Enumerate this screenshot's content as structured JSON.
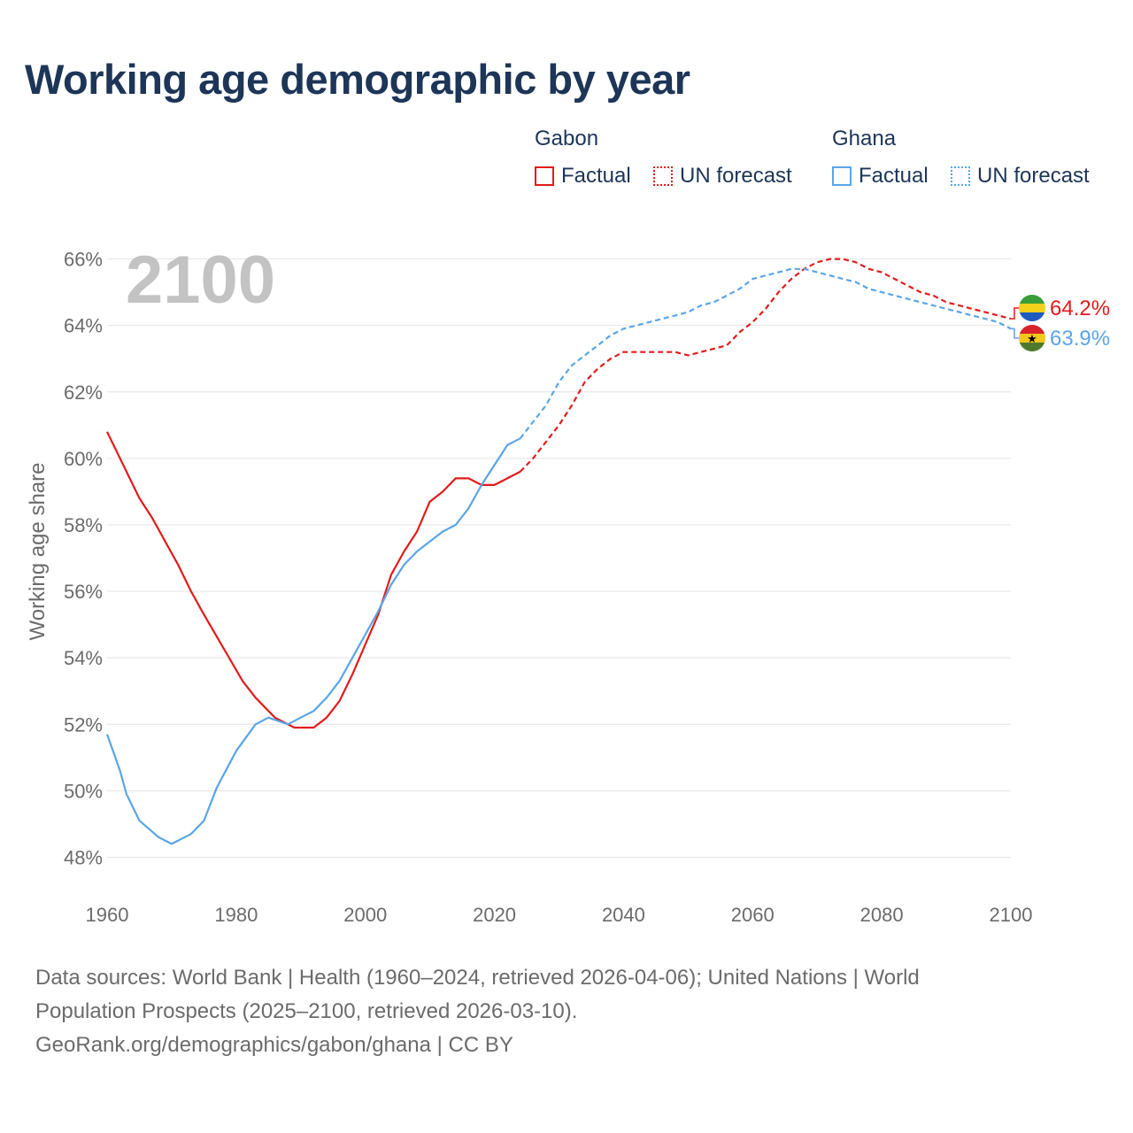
{
  "title": "Working age demographic by year",
  "legend": {
    "groups": [
      {
        "country": "Gabon",
        "factual": "Factual",
        "forecast": "UN forecast",
        "color": "#e31b1b"
      },
      {
        "country": "Ghana",
        "factual": "Factual",
        "forecast": "UN forecast",
        "color": "#5aa5e6"
      }
    ]
  },
  "sources": {
    "line1": "Data sources: World Bank | Health (1960–2024, retrieved 2026-04-06); United Nations | World",
    "line2": "Population Prospects (2025–2100, retrieved 2026-03-10).",
    "line3": "GeoRank.org/demographics/gabon/ghana | CC BY"
  },
  "chart_data": {
    "type": "line",
    "current_year_label": "2100",
    "ylabel": "Working age share",
    "xlim": [
      1960,
      2100
    ],
    "ylim": [
      47,
      67
    ],
    "xticks": [
      "1960",
      "1980",
      "2000",
      "2020",
      "2040",
      "2060",
      "2080",
      "2100"
    ],
    "yticks": [
      "48%",
      "50%",
      "52%",
      "54%",
      "56%",
      "58%",
      "60%",
      "62%",
      "64%",
      "66%"
    ],
    "ytick_values": [
      48,
      50,
      52,
      54,
      56,
      58,
      60,
      62,
      64,
      66
    ],
    "factual_end_year": 2024,
    "series": [
      {
        "name": "Gabon",
        "color": "#e31b1b",
        "end_label": "64.2%",
        "flag": "gabon-flag-icon",
        "x": [
          1960,
          1963,
          1965,
          1967,
          1969,
          1971,
          1973,
          1975,
          1978,
          1981,
          1983,
          1986,
          1989,
          1992,
          1994,
          1996,
          1998,
          2000,
          2002,
          2004,
          2006,
          2008,
          2010,
          2012,
          2014,
          2016,
          2018,
          2020,
          2022,
          2024,
          2026,
          2028,
          2030,
          2032,
          2034,
          2036,
          2038,
          2040,
          2042,
          2044,
          2046,
          2048,
          2050,
          2052,
          2054,
          2056,
          2058,
          2060,
          2062,
          2064,
          2066,
          2068,
          2070,
          2072,
          2074,
          2076,
          2078,
          2080,
          2082,
          2084,
          2086,
          2088,
          2090,
          2092,
          2094,
          2096,
          2098,
          2100
        ],
        "y": [
          60.8,
          59.6,
          58.8,
          58.2,
          57.5,
          56.8,
          56.0,
          55.3,
          54.3,
          53.3,
          52.8,
          52.2,
          51.9,
          51.9,
          52.2,
          52.7,
          53.5,
          54.4,
          55.3,
          56.5,
          57.2,
          57.8,
          58.7,
          59.0,
          59.4,
          59.4,
          59.2,
          59.2,
          59.4,
          59.6,
          60.0,
          60.5,
          61.0,
          61.6,
          62.3,
          62.7,
          63.0,
          63.2,
          63.2,
          63.2,
          63.2,
          63.2,
          63.1,
          63.2,
          63.3,
          63.4,
          63.8,
          64.1,
          64.5,
          65.0,
          65.4,
          65.7,
          65.9,
          66.0,
          66.0,
          65.9,
          65.7,
          65.6,
          65.4,
          65.2,
          65.0,
          64.9,
          64.7,
          64.6,
          64.5,
          64.4,
          64.3,
          64.2
        ]
      },
      {
        "name": "Ghana",
        "color": "#5aa5e6",
        "end_label": "63.9%",
        "flag": "ghana-flag-icon",
        "x": [
          1960,
          1962,
          1963,
          1965,
          1968,
          1970,
          1973,
          1975,
          1977,
          1980,
          1983,
          1985,
          1988,
          1990,
          1992,
          1994,
          1996,
          1998,
          2000,
          2002,
          2004,
          2006,
          2008,
          2010,
          2012,
          2014,
          2016,
          2018,
          2020,
          2022,
          2024,
          2026,
          2028,
          2030,
          2032,
          2034,
          2036,
          2038,
          2040,
          2042,
          2044,
          2046,
          2048,
          2050,
          2052,
          2054,
          2056,
          2058,
          2060,
          2062,
          2064,
          2066,
          2068,
          2070,
          2072,
          2074,
          2076,
          2078,
          2080,
          2082,
          2084,
          2086,
          2088,
          2090,
          2092,
          2094,
          2096,
          2098,
          2100
        ],
        "y": [
          51.7,
          50.6,
          49.9,
          49.1,
          48.6,
          48.4,
          48.7,
          49.1,
          50.1,
          51.2,
          52.0,
          52.2,
          52.0,
          52.2,
          52.4,
          52.8,
          53.3,
          54.0,
          54.7,
          55.4,
          56.2,
          56.8,
          57.2,
          57.5,
          57.8,
          58.0,
          58.5,
          59.2,
          59.8,
          60.4,
          60.6,
          61.1,
          61.6,
          62.3,
          62.8,
          63.1,
          63.4,
          63.7,
          63.9,
          64.0,
          64.1,
          64.2,
          64.3,
          64.4,
          64.6,
          64.7,
          64.9,
          65.1,
          65.4,
          65.5,
          65.6,
          65.7,
          65.7,
          65.6,
          65.5,
          65.4,
          65.3,
          65.1,
          65.0,
          64.9,
          64.8,
          64.7,
          64.6,
          64.5,
          64.4,
          64.3,
          64.2,
          64.1,
          63.9
        ]
      }
    ]
  }
}
